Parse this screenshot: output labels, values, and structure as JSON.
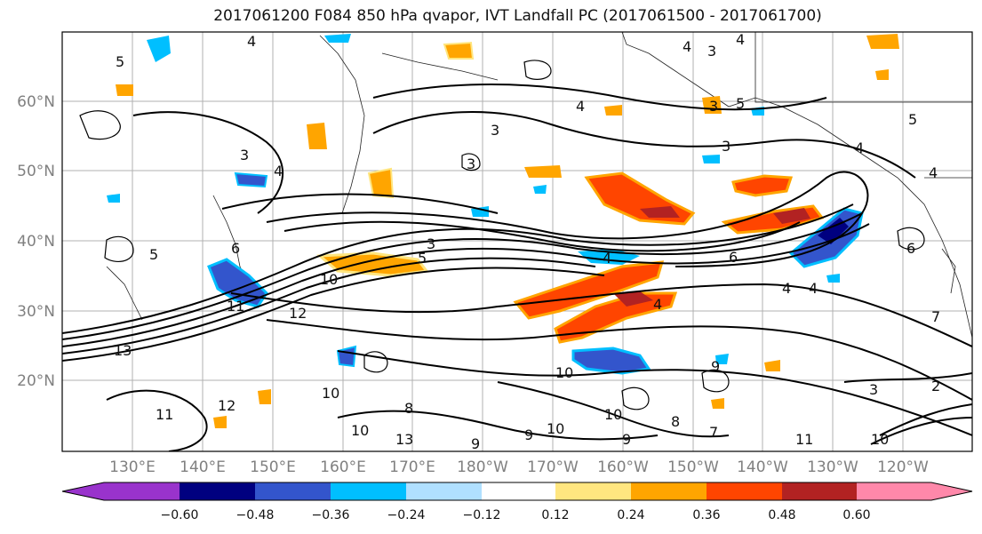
{
  "title": "2017061200 F084 850 hPa qvapor, IVT Landfall PC (2017061500 - 2017061700)",
  "map": {
    "lat_labels": [
      "60°N",
      "50°N",
      "40°N",
      "30°N",
      "20°N"
    ],
    "lon_labels": [
      "130°E",
      "140°E",
      "150°E",
      "160°E",
      "170°E",
      "180°W",
      "170°W",
      "160°W",
      "150°W",
      "140°W",
      "130°W",
      "120°W"
    ],
    "contour_labels": [
      "4",
      "4",
      "4",
      "3",
      "5",
      "3",
      "4",
      "3",
      "5",
      "3",
      "3",
      "4",
      "4",
      "5",
      "6",
      "6",
      "3",
      "4",
      "3",
      "5",
      "4",
      "4",
      "5",
      "6",
      "10",
      "11",
      "12",
      "13",
      "10",
      "12",
      "11",
      "10",
      "10",
      "13",
      "9",
      "9",
      "10",
      "9",
      "10",
      "11",
      "7",
      "4",
      "4",
      "3",
      "2",
      "10",
      "9",
      "8",
      "7",
      "8"
    ]
  },
  "colorbar": {
    "ticks": [
      "−0.60",
      "−0.48",
      "−0.36",
      "−0.24",
      "−0.12",
      "0.12",
      "0.24",
      "0.36",
      "0.48",
      "0.60"
    ],
    "colors": [
      "#9933cc",
      "#000080",
      "#3355cc",
      "#00bfff",
      "#b0e0ff",
      "#ffffff",
      "#ffe680",
      "#ffa500",
      "#ff4500",
      "#b22222",
      "#ff88aa"
    ]
  }
}
